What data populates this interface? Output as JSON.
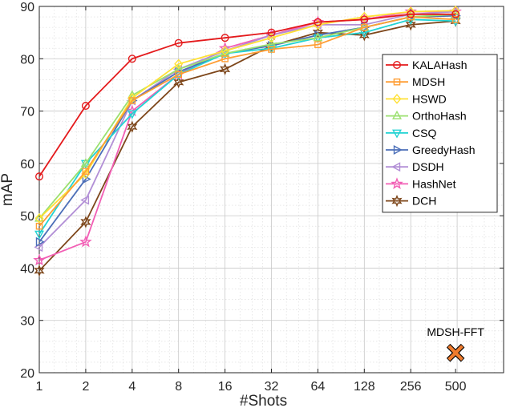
{
  "chart_data": {
    "type": "line",
    "xlabel": "#Shots",
    "ylabel": "mAP",
    "ylim": [
      20,
      90
    ],
    "yticks": [
      20,
      30,
      40,
      50,
      60,
      70,
      80,
      90
    ],
    "x_scale": "log2",
    "xlim": [
      1,
      1024
    ],
    "categories": [
      "1",
      "2",
      "4",
      "8",
      "16",
      "32",
      "64",
      "128",
      "256",
      "500"
    ],
    "x": [
      1,
      2,
      4,
      8,
      16,
      32,
      64,
      128,
      256,
      500
    ],
    "grid": true,
    "legend_position": "right",
    "series": [
      {
        "name": "KALAHash",
        "color": "#e41a1c",
        "marker": "circle",
        "values": [
          57.5,
          71.0,
          80.0,
          83.0,
          84.0,
          85.0,
          87.0,
          87.5,
          88.5,
          88.5
        ]
      },
      {
        "name": "MDSH",
        "color": "#ff9e35",
        "marker": "square",
        "values": [
          48.0,
          58.5,
          72.0,
          77.0,
          80.0,
          81.8,
          82.7,
          86.0,
          88.0,
          87.5
        ]
      },
      {
        "name": "HSWD",
        "color": "#ffe135",
        "marker": "diamond",
        "values": [
          49.5,
          58.0,
          72.5,
          79.0,
          81.5,
          84.0,
          86.5,
          88.0,
          89.0,
          89.2
        ]
      },
      {
        "name": "OrthoHash",
        "color": "#9be06f",
        "marker": "triangle-up",
        "values": [
          49.5,
          60.0,
          73.0,
          78.0,
          81.0,
          82.8,
          84.0,
          86.0,
          88.0,
          88.5
        ]
      },
      {
        "name": "CSQ",
        "color": "#22d3d3",
        "marker": "triangle-down",
        "values": [
          46.5,
          60.0,
          69.5,
          77.0,
          81.0,
          82.0,
          84.0,
          85.0,
          87.5,
          87.2
        ]
      },
      {
        "name": "GreedyHash",
        "color": "#4c6fb8",
        "marker": "triangle-right",
        "values": [
          45.0,
          57.0,
          72.0,
          77.5,
          81.0,
          82.5,
          84.5,
          86.0,
          88.0,
          88.2
        ]
      },
      {
        "name": "DSDH",
        "color": "#b28fd6",
        "marker": "triangle-left",
        "values": [
          44.0,
          53.0,
          72.0,
          78.0,
          81.5,
          84.5,
          86.5,
          86.5,
          88.5,
          89.0
        ]
      },
      {
        "name": "HashNet",
        "color": "#f25fb5",
        "marker": "pentagram",
        "values": [
          41.5,
          45.0,
          70.0,
          77.0,
          82.0,
          84.5,
          87.0,
          87.5,
          89.0,
          89.0
        ]
      },
      {
        "name": "DCH",
        "color": "#7d461a",
        "marker": "hexagram",
        "values": [
          39.5,
          48.8,
          67.0,
          75.5,
          78.0,
          82.5,
          85.0,
          84.5,
          86.5,
          87.2
        ]
      }
    ],
    "annotations": [
      {
        "label": "MDSH-FFT",
        "x": 500,
        "y": 23.8,
        "marker": "x",
        "color": "#ef7c2e"
      }
    ]
  }
}
